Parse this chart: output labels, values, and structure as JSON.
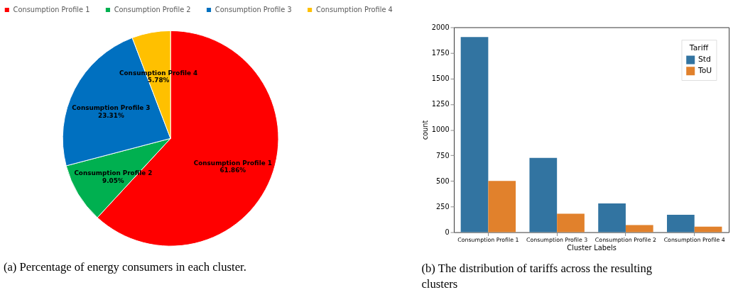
{
  "chart_data": [
    {
      "type": "pie",
      "categories": [
        "Consumption Profile 1",
        "Consumption Profile 2",
        "Consumption Profile 3",
        "Consumption Profile 4"
      ],
      "values": [
        61.86,
        9.05,
        23.31,
        5.78
      ],
      "colors": [
        "#ff0000",
        "#00b050",
        "#0070c0",
        "#ffc000"
      ],
      "value_labels": [
        "61.86%",
        "9.05%",
        "23.31%",
        "5.78%"
      ],
      "legend": "top",
      "annotations": [
        "(a) Percentage of energy consumers in each cluster."
      ]
    },
    {
      "type": "bar",
      "categories": [
        "Consumption Profile 1",
        "Consumption Profile 3",
        "Consumption Profile 2",
        "Consumption Profile 4"
      ],
      "series": [
        {
          "name": "Std",
          "color": "#3274a1",
          "values": [
            1905,
            725,
            280,
            170
          ]
        },
        {
          "name": "ToU",
          "color": "#e1812c",
          "values": [
            500,
            180,
            70,
            55
          ]
        }
      ],
      "xlabel": "Cluster Labels",
      "ylabel": "count",
      "legend_title": "Tariff",
      "legend": "top right",
      "ylim": [
        0,
        2000
      ],
      "yticks": [
        0,
        250,
        500,
        750,
        1000,
        1250,
        1500,
        1750,
        2000
      ],
      "grid": false,
      "annotations": [
        "(b) The distribution of tariffs across the resulting clusters"
      ]
    }
  ]
}
